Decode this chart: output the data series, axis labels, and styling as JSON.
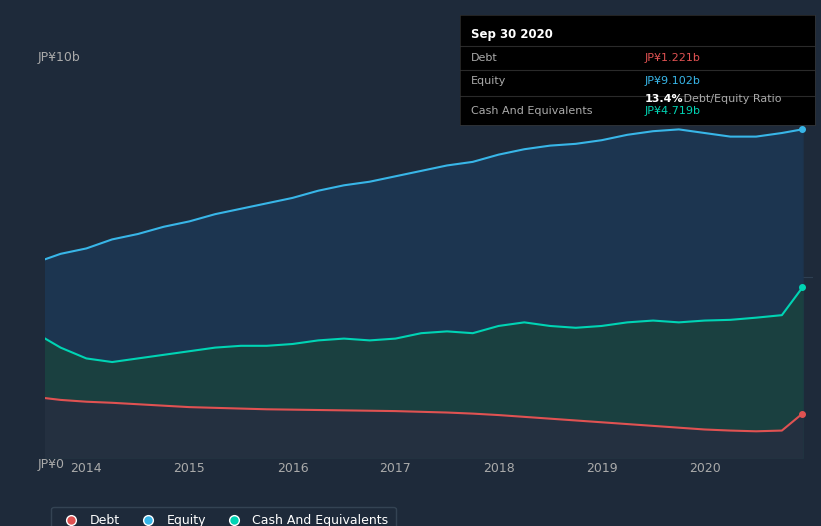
{
  "bg_color": "#1e2a3a",
  "plot_bg_color": "#1e2a3a",
  "tooltip_date": "Sep 30 2020",
  "tooltip_debt_label": "Debt",
  "tooltip_debt_value": "JP¥1.221b",
  "tooltip_equity_label": "Equity",
  "tooltip_equity_value": "JP¥9.102b",
  "tooltip_ratio_bold": "13.4%",
  "tooltip_ratio_text": " Debt/Equity Ratio",
  "tooltip_cash_label": "Cash And Equivalents",
  "tooltip_cash_value": "JP¥4.719b",
  "ylabel_top": "JP¥10b",
  "ylabel_bottom": "JP¥0",
  "debt_color": "#e05252",
  "equity_color": "#38b6e8",
  "cash_color": "#00d4b4",
  "x_ticks": [
    2014,
    2015,
    2016,
    2017,
    2018,
    2019,
    2020
  ],
  "legend_labels": [
    "Debt",
    "Equity",
    "Cash And Equivalents"
  ],
  "years": [
    2013.6,
    2013.75,
    2014.0,
    2014.25,
    2014.5,
    2014.75,
    2015.0,
    2015.25,
    2015.5,
    2015.75,
    2016.0,
    2016.25,
    2016.5,
    2016.75,
    2017.0,
    2017.25,
    2017.5,
    2017.75,
    2018.0,
    2018.25,
    2018.5,
    2018.75,
    2019.0,
    2019.25,
    2019.5,
    2019.75,
    2020.0,
    2020.25,
    2020.5,
    2020.75,
    2020.95
  ],
  "equity": [
    5.5,
    5.65,
    5.8,
    6.05,
    6.2,
    6.4,
    6.55,
    6.75,
    6.9,
    7.05,
    7.2,
    7.4,
    7.55,
    7.65,
    7.8,
    7.95,
    8.1,
    8.2,
    8.4,
    8.55,
    8.65,
    8.7,
    8.8,
    8.95,
    9.05,
    9.1,
    9.0,
    8.9,
    8.9,
    9.0,
    9.102
  ],
  "cash": [
    3.3,
    3.05,
    2.75,
    2.65,
    2.75,
    2.85,
    2.95,
    3.05,
    3.1,
    3.1,
    3.15,
    3.25,
    3.3,
    3.25,
    3.3,
    3.45,
    3.5,
    3.45,
    3.65,
    3.75,
    3.65,
    3.6,
    3.65,
    3.75,
    3.8,
    3.75,
    3.8,
    3.82,
    3.88,
    3.95,
    4.719
  ],
  "debt": [
    1.65,
    1.6,
    1.55,
    1.52,
    1.48,
    1.44,
    1.4,
    1.38,
    1.36,
    1.34,
    1.33,
    1.32,
    1.31,
    1.3,
    1.29,
    1.27,
    1.25,
    1.22,
    1.18,
    1.13,
    1.08,
    1.03,
    0.98,
    0.93,
    0.88,
    0.83,
    0.78,
    0.75,
    0.73,
    0.75,
    1.221
  ],
  "ylim": [
    0,
    10.5
  ],
  "xlim": [
    2013.6,
    2021.05
  ]
}
